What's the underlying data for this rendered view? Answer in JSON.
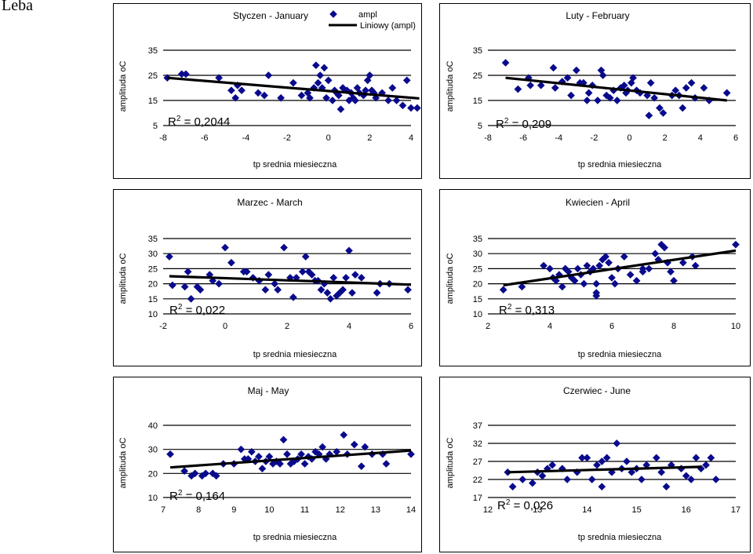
{
  "page": {
    "title": "Leba"
  },
  "colors": {
    "marker": "#0a0a8c",
    "trend": "#000000",
    "grid": "#000000"
  },
  "common": {
    "xlabel": "tp srednia miesieczna",
    "ylabel": "amplituda oC"
  },
  "legend": {
    "marker_label": "ampl",
    "trend_label": "Liniowy (ampl)"
  },
  "chart_data": [
    {
      "type": "scatter",
      "title": "Styczen - January",
      "r2_text": "R2 = 0,2044",
      "xlim": [
        -8,
        4
      ],
      "ylim": [
        5,
        35
      ],
      "xticks": [
        "-8",
        "-6",
        "-4",
        "-2",
        "0",
        "2",
        "4"
      ],
      "yticks": [
        "5",
        "15",
        "25",
        "35"
      ],
      "trend": [
        [
          -7.8,
          24
        ],
        [
          4.4,
          15.8
        ]
      ],
      "points": [
        [
          -7.8,
          24
        ],
        [
          -7.1,
          25.5
        ],
        [
          -6.9,
          25.5
        ],
        [
          -5.3,
          24
        ],
        [
          -4.7,
          19
        ],
        [
          -4.5,
          16
        ],
        [
          -4.4,
          21
        ],
        [
          -4.2,
          19
        ],
        [
          -3.4,
          18
        ],
        [
          -3.1,
          17
        ],
        [
          -2.9,
          25
        ],
        [
          -2.3,
          16
        ],
        [
          -1.7,
          22
        ],
        [
          -1.3,
          17
        ],
        [
          -1.0,
          18
        ],
        [
          -0.9,
          16
        ],
        [
          -0.7,
          20
        ],
        [
          -0.6,
          29
        ],
        [
          -0.5,
          22
        ],
        [
          -0.4,
          25
        ],
        [
          -0.3,
          20
        ],
        [
          -0.2,
          28
        ],
        [
          -0.1,
          16
        ],
        [
          0.0,
          23
        ],
        [
          0.2,
          15
        ],
        [
          0.3,
          19
        ],
        [
          0.4,
          18
        ],
        [
          0.5,
          17
        ],
        [
          0.6,
          11.5
        ],
        [
          0.7,
          20
        ],
        [
          0.9,
          19
        ],
        [
          1.0,
          15
        ],
        [
          1.1,
          18
        ],
        [
          1.2,
          16
        ],
        [
          1.3,
          15
        ],
        [
          1.4,
          20
        ],
        [
          1.5,
          18
        ],
        [
          1.7,
          17
        ],
        [
          1.8,
          19
        ],
        [
          1.9,
          23
        ],
        [
          2.0,
          25
        ],
        [
          2.1,
          19
        ],
        [
          2.2,
          18
        ],
        [
          2.3,
          16
        ],
        [
          2.6,
          18
        ],
        [
          2.9,
          15
        ],
        [
          3.1,
          20
        ],
        [
          3.3,
          15
        ],
        [
          3.6,
          13
        ],
        [
          3.8,
          23
        ],
        [
          4.0,
          12
        ],
        [
          4.3,
          12
        ]
      ]
    },
    {
      "type": "scatter",
      "title": "Luty - February",
      "r2_text": "R2 = 0,209",
      "xlim": [
        -8,
        6
      ],
      "ylim": [
        5,
        35
      ],
      "xticks": [
        "-8",
        "-6",
        "-4",
        "-2",
        "0",
        "2",
        "4",
        "6"
      ],
      "yticks": [
        "5",
        "15",
        "25",
        "35"
      ],
      "trend": [
        [
          -7.0,
          24
        ],
        [
          5.5,
          15
        ]
      ],
      "points": [
        [
          -7.0,
          30
        ],
        [
          -6.3,
          19.5
        ],
        [
          -5.7,
          24
        ],
        [
          -5.6,
          21
        ],
        [
          -5.0,
          21
        ],
        [
          -4.3,
          28
        ],
        [
          -4.2,
          20
        ],
        [
          -3.8,
          22.5
        ],
        [
          -3.5,
          24
        ],
        [
          -3.3,
          17
        ],
        [
          -3.0,
          27
        ],
        [
          -2.8,
          22
        ],
        [
          -2.6,
          22
        ],
        [
          -2.4,
          15
        ],
        [
          -2.3,
          18
        ],
        [
          -2.1,
          21
        ],
        [
          -1.8,
          15
        ],
        [
          -1.6,
          27
        ],
        [
          -1.5,
          25
        ],
        [
          -1.3,
          17
        ],
        [
          -1.1,
          16
        ],
        [
          -0.9,
          19
        ],
        [
          -0.7,
          15
        ],
        [
          -0.5,
          20
        ],
        [
          -0.3,
          21
        ],
        [
          -0.2,
          18
        ],
        [
          -0.1,
          19
        ],
        [
          0.1,
          22
        ],
        [
          0.2,
          24
        ],
        [
          0.4,
          19
        ],
        [
          0.6,
          18
        ],
        [
          1.0,
          17
        ],
        [
          1.1,
          9
        ],
        [
          1.2,
          22
        ],
        [
          1.4,
          16
        ],
        [
          1.7,
          12
        ],
        [
          1.9,
          10
        ],
        [
          2.4,
          17
        ],
        [
          2.6,
          19
        ],
        [
          2.8,
          17
        ],
        [
          3.0,
          12
        ],
        [
          3.2,
          20
        ],
        [
          3.5,
          22
        ],
        [
          3.7,
          16
        ],
        [
          4.2,
          20
        ],
        [
          4.5,
          15
        ],
        [
          5.5,
          18
        ]
      ]
    },
    {
      "type": "scatter",
      "title": "Marzec - March",
      "r2_text": "R2 = 0,022",
      "xlim": [
        -2,
        6
      ],
      "ylim": [
        10,
        35
      ],
      "xticks": [
        "-2",
        "0",
        "2",
        "4",
        "6"
      ],
      "yticks": [
        "10",
        "15",
        "20",
        "25",
        "30",
        "35"
      ],
      "trend": [
        [
          -1.8,
          22.5
        ],
        [
          6.0,
          19.7
        ]
      ],
      "points": [
        [
          -1.8,
          29
        ],
        [
          -1.7,
          19.5
        ],
        [
          -1.3,
          19
        ],
        [
          -1.2,
          24
        ],
        [
          -1.1,
          15
        ],
        [
          -0.9,
          19
        ],
        [
          -0.8,
          18
        ],
        [
          -0.5,
          23
        ],
        [
          -0.4,
          21
        ],
        [
          -0.2,
          20
        ],
        [
          0.0,
          32
        ],
        [
          0.2,
          27
        ],
        [
          0.6,
          24
        ],
        [
          0.7,
          24
        ],
        [
          0.9,
          22
        ],
        [
          1.1,
          21
        ],
        [
          1.3,
          18
        ],
        [
          1.4,
          23
        ],
        [
          1.6,
          20
        ],
        [
          1.7,
          18
        ],
        [
          1.9,
          32
        ],
        [
          2.1,
          22
        ],
        [
          2.2,
          15.5
        ],
        [
          2.3,
          22
        ],
        [
          2.5,
          24
        ],
        [
          2.6,
          29
        ],
        [
          2.7,
          24
        ],
        [
          2.8,
          23
        ],
        [
          2.9,
          21
        ],
        [
          3.0,
          21
        ],
        [
          3.1,
          18
        ],
        [
          3.2,
          20
        ],
        [
          3.3,
          17
        ],
        [
          3.4,
          15
        ],
        [
          3.5,
          22
        ],
        [
          3.6,
          16
        ],
        [
          3.7,
          17
        ],
        [
          3.8,
          18
        ],
        [
          3.9,
          22
        ],
        [
          4.0,
          31
        ],
        [
          4.1,
          17
        ],
        [
          4.2,
          23
        ],
        [
          4.4,
          22
        ],
        [
          4.9,
          17
        ],
        [
          5.0,
          20
        ],
        [
          5.3,
          20
        ],
        [
          5.9,
          18
        ]
      ]
    },
    {
      "type": "scatter",
      "title": "Kwiecien - April",
      "r2_text": "R2 = 0,313",
      "xlim": [
        2,
        10
      ],
      "ylim": [
        10,
        35
      ],
      "xticks": [
        "2",
        "4",
        "6",
        "8",
        "10"
      ],
      "yticks": [
        "10",
        "15",
        "20",
        "25",
        "30",
        "35"
      ],
      "trend": [
        [
          2.5,
          19.5
        ],
        [
          10.0,
          31
        ]
      ],
      "points": [
        [
          2.5,
          18
        ],
        [
          3.1,
          19
        ],
        [
          3.8,
          26
        ],
        [
          4.0,
          25
        ],
        [
          4.1,
          22
        ],
        [
          4.2,
          21
        ],
        [
          4.3,
          23
        ],
        [
          4.4,
          19
        ],
        [
          4.5,
          25
        ],
        [
          4.6,
          24
        ],
        [
          4.7,
          22
        ],
        [
          4.8,
          21
        ],
        [
          4.9,
          25
        ],
        [
          5.0,
          23
        ],
        [
          5.1,
          20
        ],
        [
          5.2,
          26
        ],
        [
          5.3,
          24
        ],
        [
          5.4,
          25
        ],
        [
          5.5,
          16
        ],
        [
          5.5,
          17
        ],
        [
          5.5,
          20
        ],
        [
          5.6,
          26
        ],
        [
          5.7,
          28
        ],
        [
          5.8,
          29
        ],
        [
          5.9,
          27
        ],
        [
          6.0,
          22
        ],
        [
          6.1,
          20
        ],
        [
          6.2,
          25
        ],
        [
          6.4,
          29
        ],
        [
          6.6,
          23
        ],
        [
          6.8,
          21
        ],
        [
          7.0,
          24
        ],
        [
          7.0,
          25
        ],
        [
          7.2,
          25
        ],
        [
          7.4,
          30
        ],
        [
          7.5,
          28
        ],
        [
          7.6,
          33
        ],
        [
          7.7,
          32
        ],
        [
          7.8,
          27
        ],
        [
          7.9,
          24
        ],
        [
          8.0,
          21
        ],
        [
          8.3,
          27
        ],
        [
          8.6,
          29
        ],
        [
          8.7,
          26
        ],
        [
          10.0,
          33
        ]
      ]
    },
    {
      "type": "scatter",
      "title": "Maj - May",
      "r2_text": "R2 = 0,164",
      "xlim": [
        7,
        14
      ],
      "ylim": [
        10,
        40
      ],
      "xticks": [
        "7",
        "8",
        "9",
        "10",
        "11",
        "12",
        "13",
        "14"
      ],
      "yticks": [
        "10",
        "20",
        "30",
        "40"
      ],
      "trend": [
        [
          7.2,
          22.5
        ],
        [
          14.0,
          29.5
        ]
      ],
      "points": [
        [
          7.2,
          28
        ],
        [
          7.6,
          21
        ],
        [
          7.8,
          19
        ],
        [
          7.9,
          20
        ],
        [
          8.1,
          19
        ],
        [
          8.2,
          20
        ],
        [
          8.4,
          20
        ],
        [
          8.5,
          19
        ],
        [
          8.7,
          24
        ],
        [
          9.0,
          24
        ],
        [
          9.2,
          30
        ],
        [
          9.3,
          26
        ],
        [
          9.4,
          26
        ],
        [
          9.5,
          29
        ],
        [
          9.6,
          25
        ],
        [
          9.7,
          27
        ],
        [
          9.8,
          22
        ],
        [
          9.9,
          25
        ],
        [
          10.0,
          27
        ],
        [
          10.1,
          24
        ],
        [
          10.2,
          25
        ],
        [
          10.3,
          24
        ],
        [
          10.4,
          34
        ],
        [
          10.5,
          28
        ],
        [
          10.6,
          24
        ],
        [
          10.7,
          25
        ],
        [
          10.8,
          26
        ],
        [
          10.9,
          28
        ],
        [
          11.0,
          24
        ],
        [
          11.1,
          27
        ],
        [
          11.2,
          26
        ],
        [
          11.3,
          29
        ],
        [
          11.4,
          28
        ],
        [
          11.5,
          31
        ],
        [
          11.6,
          26
        ],
        [
          11.7,
          28
        ],
        [
          11.9,
          29
        ],
        [
          12.1,
          36
        ],
        [
          12.2,
          28
        ],
        [
          12.4,
          32
        ],
        [
          12.6,
          23
        ],
        [
          12.7,
          31
        ],
        [
          12.9,
          28
        ],
        [
          13.2,
          28
        ],
        [
          13.3,
          24
        ],
        [
          14.0,
          28
        ]
      ]
    },
    {
      "type": "scatter",
      "title": "Czerwiec - June",
      "r2_text": "R2 = 0,026",
      "xlim": [
        12,
        17
      ],
      "ylim": [
        17,
        37
      ],
      "xticks": [
        "12",
        "13",
        "14",
        "15",
        "16",
        "17"
      ],
      "yticks": [
        "17",
        "22",
        "27",
        "32",
        "37"
      ],
      "trend": [
        [
          12.4,
          24
        ],
        [
          16.3,
          25.5
        ]
      ],
      "points": [
        [
          12.4,
          24
        ],
        [
          12.5,
          20
        ],
        [
          12.7,
          22
        ],
        [
          12.9,
          21
        ],
        [
          13.0,
          24
        ],
        [
          13.1,
          23
        ],
        [
          13.2,
          25
        ],
        [
          13.3,
          26
        ],
        [
          13.5,
          25
        ],
        [
          13.6,
          22
        ],
        [
          13.8,
          24
        ],
        [
          13.9,
          28
        ],
        [
          14.0,
          28
        ],
        [
          14.1,
          22
        ],
        [
          14.2,
          26
        ],
        [
          14.3,
          27
        ],
        [
          14.3,
          20
        ],
        [
          14.4,
          28
        ],
        [
          14.5,
          24
        ],
        [
          14.6,
          32
        ],
        [
          14.7,
          25
        ],
        [
          14.8,
          27
        ],
        [
          14.9,
          24
        ],
        [
          15.0,
          25
        ],
        [
          15.1,
          22
        ],
        [
          15.2,
          26
        ],
        [
          15.4,
          28
        ],
        [
          15.5,
          24
        ],
        [
          15.6,
          20
        ],
        [
          15.7,
          26
        ],
        [
          15.9,
          25
        ],
        [
          16.0,
          23
        ],
        [
          16.1,
          22
        ],
        [
          16.2,
          28
        ],
        [
          16.3,
          25
        ],
        [
          16.4,
          26
        ],
        [
          16.5,
          28
        ],
        [
          16.6,
          22
        ]
      ]
    }
  ]
}
